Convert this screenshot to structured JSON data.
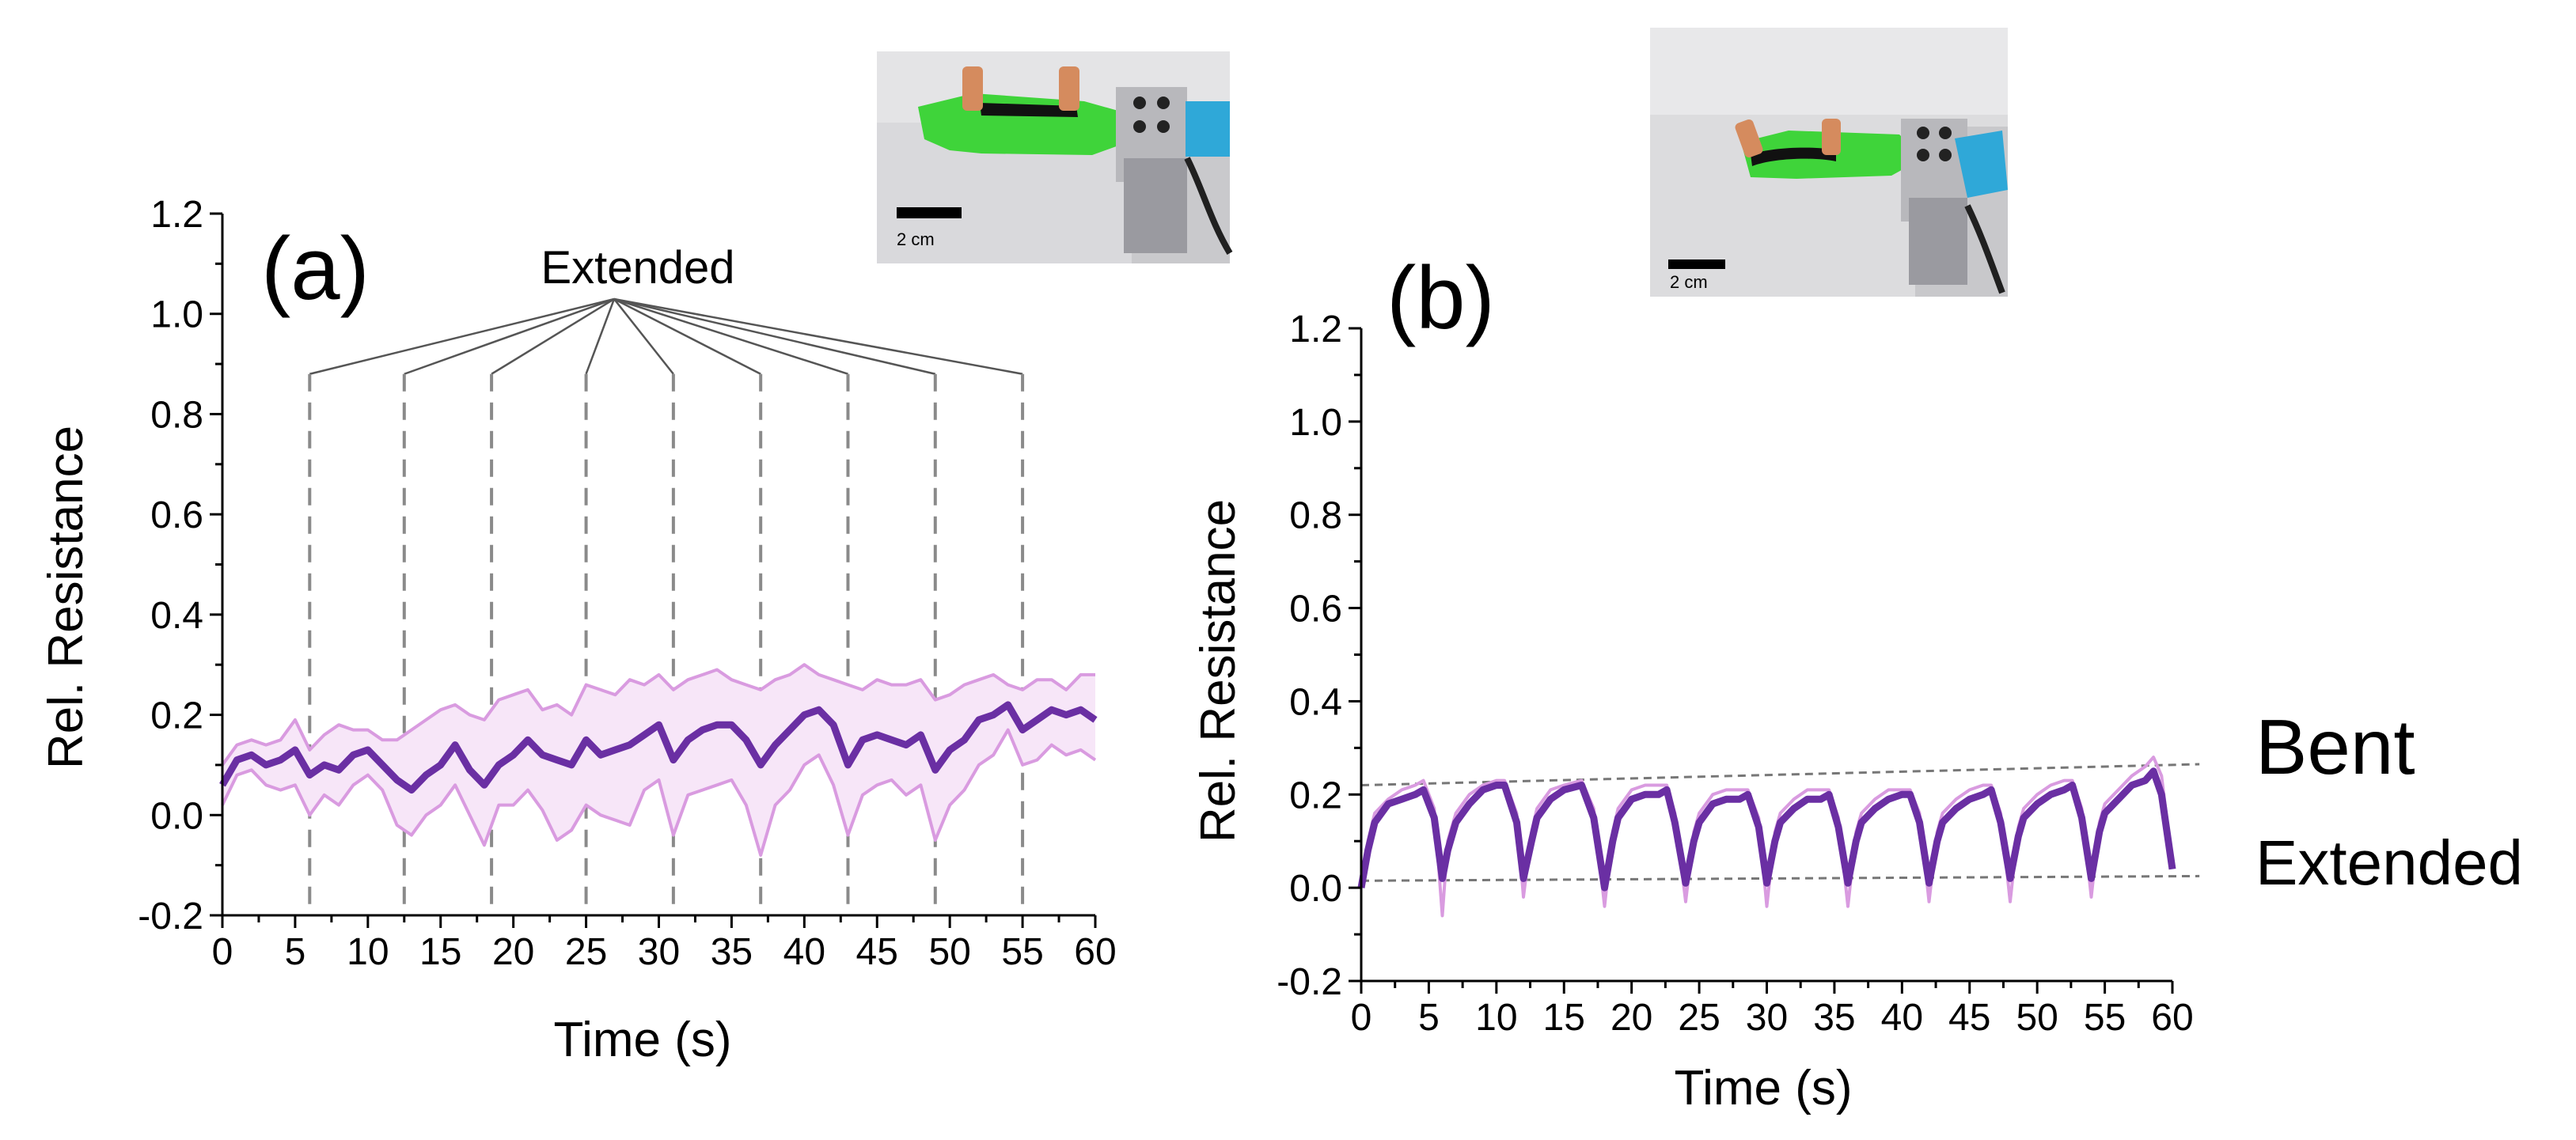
{
  "chart_data": [
    {
      "panel": "(a)",
      "type": "line",
      "xlabel": "Time (s)",
      "ylabel": "Rel. Resistance",
      "xlim": [
        0,
        60
      ],
      "ylim": [
        -0.2,
        1.2
      ],
      "xticks": [
        "0",
        "5",
        "10",
        "15",
        "20",
        "25",
        "30",
        "35",
        "40",
        "45",
        "50",
        "55",
        "60"
      ],
      "yticks": [
        "-0.2",
        "0.0",
        "0.2",
        "0.4",
        "0.6",
        "0.8",
        "1.0",
        "1.2"
      ],
      "annotation": "Extended",
      "extended_markers_s": [
        6,
        12.5,
        18.5,
        25,
        31,
        37,
        43,
        49,
        55
      ],
      "series": [
        {
          "name": "mean",
          "style": "thick",
          "x": [
            0,
            1,
            2,
            3,
            4,
            5,
            6,
            7,
            8,
            9,
            10,
            11,
            12,
            13,
            14,
            15,
            16,
            17,
            18,
            19,
            20,
            21,
            22,
            23,
            24,
            25,
            26,
            27,
            28,
            29,
            30,
            31,
            32,
            33,
            34,
            35,
            36,
            37,
            38,
            39,
            40,
            41,
            42,
            43,
            44,
            45,
            46,
            47,
            48,
            49,
            50,
            51,
            52,
            53,
            54,
            55,
            56,
            57,
            58,
            59,
            60
          ],
          "values": [
            0.06,
            0.11,
            0.12,
            0.1,
            0.11,
            0.13,
            0.08,
            0.1,
            0.09,
            0.12,
            0.13,
            0.1,
            0.07,
            0.05,
            0.08,
            0.1,
            0.14,
            0.09,
            0.06,
            0.1,
            0.12,
            0.15,
            0.12,
            0.11,
            0.1,
            0.15,
            0.12,
            0.13,
            0.14,
            0.16,
            0.18,
            0.11,
            0.15,
            0.17,
            0.18,
            0.18,
            0.15,
            0.1,
            0.14,
            0.17,
            0.2,
            0.21,
            0.18,
            0.1,
            0.15,
            0.16,
            0.15,
            0.14,
            0.16,
            0.09,
            0.13,
            0.15,
            0.19,
            0.2,
            0.22,
            0.17,
            0.19,
            0.21,
            0.2,
            0.21,
            0.19
          ]
        },
        {
          "name": "upper",
          "style": "thin",
          "x": [
            0,
            1,
            2,
            3,
            4,
            5,
            6,
            7,
            8,
            9,
            10,
            11,
            12,
            13,
            14,
            15,
            16,
            17,
            18,
            19,
            20,
            21,
            22,
            23,
            24,
            25,
            26,
            27,
            28,
            29,
            30,
            31,
            32,
            33,
            34,
            35,
            36,
            37,
            38,
            39,
            40,
            41,
            42,
            43,
            44,
            45,
            46,
            47,
            48,
            49,
            50,
            51,
            52,
            53,
            54,
            55,
            56,
            57,
            58,
            59,
            60
          ],
          "values": [
            0.1,
            0.14,
            0.15,
            0.14,
            0.15,
            0.19,
            0.13,
            0.16,
            0.18,
            0.17,
            0.17,
            0.15,
            0.15,
            0.17,
            0.19,
            0.21,
            0.22,
            0.2,
            0.19,
            0.23,
            0.24,
            0.25,
            0.21,
            0.22,
            0.2,
            0.26,
            0.25,
            0.24,
            0.27,
            0.26,
            0.28,
            0.25,
            0.27,
            0.28,
            0.29,
            0.27,
            0.26,
            0.25,
            0.27,
            0.28,
            0.3,
            0.28,
            0.27,
            0.26,
            0.25,
            0.27,
            0.26,
            0.26,
            0.27,
            0.23,
            0.24,
            0.26,
            0.27,
            0.28,
            0.26,
            0.25,
            0.27,
            0.27,
            0.25,
            0.28,
            0.28
          ]
        },
        {
          "name": "lower",
          "style": "thin",
          "x": [
            0,
            1,
            2,
            3,
            4,
            5,
            6,
            7,
            8,
            9,
            10,
            11,
            12,
            13,
            14,
            15,
            16,
            17,
            18,
            19,
            20,
            21,
            22,
            23,
            24,
            25,
            26,
            27,
            28,
            29,
            30,
            31,
            32,
            33,
            34,
            35,
            36,
            37,
            38,
            39,
            40,
            41,
            42,
            43,
            44,
            45,
            46,
            47,
            48,
            49,
            50,
            51,
            52,
            53,
            54,
            55,
            56,
            57,
            58,
            59,
            60
          ],
          "values": [
            0.02,
            0.08,
            0.09,
            0.06,
            0.05,
            0.06,
            0.0,
            0.04,
            0.02,
            0.06,
            0.08,
            0.05,
            -0.02,
            -0.04,
            0.0,
            0.02,
            0.06,
            0.0,
            -0.06,
            0.02,
            0.02,
            0.05,
            0.01,
            -0.05,
            -0.03,
            0.02,
            0.0,
            -0.01,
            -0.02,
            0.05,
            0.07,
            -0.04,
            0.04,
            0.05,
            0.06,
            0.07,
            0.02,
            -0.08,
            0.02,
            0.05,
            0.1,
            0.12,
            0.06,
            -0.04,
            0.04,
            0.06,
            0.07,
            0.04,
            0.06,
            -0.05,
            0.02,
            0.05,
            0.1,
            0.12,
            0.17,
            0.1,
            0.11,
            0.14,
            0.12,
            0.13,
            0.11
          ]
        }
      ]
    },
    {
      "panel": "(b)",
      "type": "line",
      "xlabel": "Time (s)",
      "ylabel": "Rel. Resistance",
      "xlim": [
        0,
        60
      ],
      "ylim": [
        -0.2,
        1.2
      ],
      "xticks": [
        "0",
        "5",
        "10",
        "15",
        "20",
        "25",
        "30",
        "35",
        "40",
        "45",
        "50",
        "55",
        "60"
      ],
      "yticks": [
        "-0.2",
        "0.0",
        "0.2",
        "0.4",
        "0.6",
        "0.8",
        "1.0",
        "1.2"
      ],
      "state_labels": [
        "Bent",
        "Extended"
      ],
      "reference_lines": [
        {
          "name": "bent",
          "x": [
            0,
            62
          ],
          "values": [
            0.22,
            0.265
          ]
        },
        {
          "name": "extended",
          "x": [
            0,
            62
          ],
          "values": [
            0.015,
            0.025
          ]
        }
      ],
      "series": [
        {
          "name": "mean",
          "style": "thick",
          "x": [
            0,
            0.5,
            1,
            2,
            3,
            4,
            4.6,
            5.4,
            6,
            6.4,
            7,
            8,
            9,
            10,
            10.6,
            11.5,
            12,
            12.6,
            13,
            14,
            15,
            16.3,
            17.2,
            18,
            18.6,
            19,
            20,
            21,
            22,
            22.6,
            23.2,
            24,
            24.6,
            25,
            26,
            27,
            28,
            28.6,
            29.4,
            30,
            30.6,
            31,
            32,
            33,
            34,
            34.6,
            35.3,
            36,
            36.6,
            37,
            38,
            39,
            40,
            40.6,
            41.3,
            42,
            42.6,
            43,
            44,
            45,
            46,
            46.6,
            47.3,
            48,
            48.6,
            49,
            50,
            51,
            52,
            52.6,
            53.3,
            54,
            54.6,
            55,
            56,
            57,
            58,
            58.6,
            59.2,
            60
          ],
          "values": [
            0.0,
            0.08,
            0.14,
            0.18,
            0.19,
            0.2,
            0.21,
            0.15,
            0.02,
            0.08,
            0.14,
            0.18,
            0.21,
            0.22,
            0.22,
            0.14,
            0.02,
            0.1,
            0.15,
            0.19,
            0.21,
            0.22,
            0.15,
            0.0,
            0.1,
            0.15,
            0.19,
            0.2,
            0.2,
            0.21,
            0.14,
            0.01,
            0.1,
            0.14,
            0.18,
            0.19,
            0.19,
            0.2,
            0.13,
            0.01,
            0.1,
            0.14,
            0.17,
            0.19,
            0.19,
            0.2,
            0.13,
            0.01,
            0.1,
            0.14,
            0.17,
            0.19,
            0.2,
            0.2,
            0.14,
            0.01,
            0.1,
            0.14,
            0.17,
            0.19,
            0.2,
            0.21,
            0.14,
            0.02,
            0.11,
            0.15,
            0.18,
            0.2,
            0.21,
            0.22,
            0.15,
            0.02,
            0.12,
            0.16,
            0.19,
            0.22,
            0.23,
            0.25,
            0.2,
            0.04
          ]
        },
        {
          "name": "range",
          "style": "thin",
          "x": [
            0,
            0.5,
            1,
            2,
            3,
            4,
            4.6,
            5.4,
            6,
            6.4,
            7,
            8,
            9,
            10,
            10.6,
            11.5,
            12,
            12.6,
            13,
            14,
            15,
            16.3,
            17.2,
            18,
            18.6,
            19,
            20,
            21,
            22,
            22.6,
            23.2,
            24,
            24.6,
            25,
            26,
            27,
            28,
            28.6,
            29.4,
            30,
            30.6,
            31,
            32,
            33,
            34,
            34.6,
            35.3,
            36,
            36.6,
            37,
            38,
            39,
            40,
            40.6,
            41.3,
            42,
            42.6,
            43,
            44,
            45,
            46,
            46.6,
            47.3,
            48,
            48.6,
            49,
            50,
            51,
            52,
            52.6,
            53.3,
            54,
            54.6,
            55,
            56,
            57,
            58,
            58.6,
            59.2,
            60
          ],
          "values": [
            0.01,
            0.1,
            0.16,
            0.19,
            0.21,
            0.22,
            0.23,
            0.17,
            -0.06,
            0.1,
            0.16,
            0.2,
            0.22,
            0.23,
            0.23,
            0.16,
            -0.02,
            0.12,
            0.17,
            0.21,
            0.22,
            0.23,
            0.17,
            -0.04,
            0.12,
            0.17,
            0.21,
            0.22,
            0.22,
            0.22,
            0.16,
            -0.03,
            0.12,
            0.16,
            0.2,
            0.21,
            0.21,
            0.21,
            0.15,
            -0.04,
            0.12,
            0.16,
            0.19,
            0.21,
            0.21,
            0.21,
            0.15,
            -0.04,
            0.12,
            0.16,
            0.19,
            0.21,
            0.21,
            0.21,
            0.16,
            -0.03,
            0.12,
            0.16,
            0.19,
            0.21,
            0.22,
            0.22,
            0.16,
            -0.03,
            0.13,
            0.17,
            0.2,
            0.22,
            0.23,
            0.23,
            0.17,
            -0.02,
            0.14,
            0.18,
            0.21,
            0.24,
            0.26,
            0.28,
            0.24,
            0.05
          ]
        }
      ]
    }
  ],
  "photos": [
    {
      "scale_label": "2 cm"
    },
    {
      "scale_label": "2 cm"
    }
  ],
  "colors": {
    "mean": "#6a2fa3",
    "range": "#d99be0",
    "band_fill": "#f7e6f8",
    "guide": "#8a8a8a",
    "refline": "#777777"
  }
}
